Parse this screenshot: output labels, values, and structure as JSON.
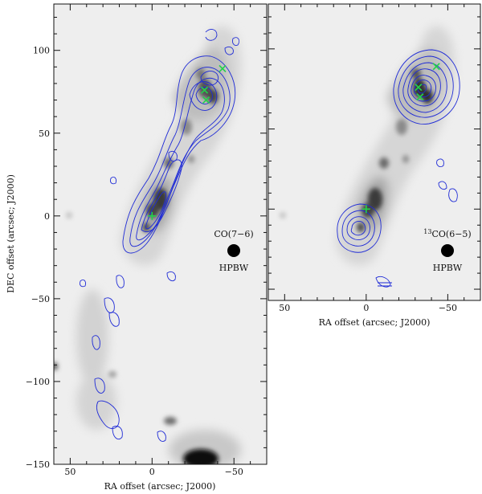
{
  "colors": {
    "background": "#eeeeee",
    "contour": "#1f2bd6",
    "marker": "#22d24a"
  },
  "chart_data": [
    {
      "type": "heatmap",
      "panel": "left",
      "xlabel": "RA offset (arcsec; J2000)",
      "ylabel": "DEC offset (arcsec; J2000)",
      "xlim": [
        60,
        -70
      ],
      "ylim": [
        -150,
        128
      ],
      "xticks": [
        50,
        0,
        -50
      ],
      "xtick_labels": [
        "50",
        "0",
        "−50"
      ],
      "yticks": [
        100,
        50,
        0,
        -50,
        -100,
        -150
      ],
      "ytick_labels": [
        "100",
        "50",
        "0",
        "−50",
        "−100",
        "−150"
      ],
      "line_label": "CO(7−6)",
      "line_label_sup": "",
      "beam_label": "HPBW",
      "beam_position": [
        -45,
        -20
      ],
      "markers": [
        {
          "type": "plus",
          "x": 0,
          "y": 0
        },
        {
          "type": "x",
          "x": -32,
          "y": 76
        },
        {
          "type": "x",
          "x": -33,
          "y": 70
        },
        {
          "type": "x",
          "x": -43,
          "y": 89
        }
      ]
    },
    {
      "type": "heatmap",
      "panel": "right",
      "xlabel": "RA offset (arcsec; J2000)",
      "xlim": [
        60,
        -70
      ],
      "ylim": [
        -57,
        128
      ],
      "xticks": [
        50,
        0,
        -50
      ],
      "xtick_labels": [
        "50",
        "0",
        "−50"
      ],
      "line_label": "CO(6−5)",
      "line_label_sup": "13",
      "beam_label": "HPBW",
      "beam_position": [
        -45,
        -20
      ],
      "markers": [
        {
          "type": "plus",
          "x": 0,
          "y": 0
        },
        {
          "type": "x",
          "x": -32,
          "y": 76
        },
        {
          "type": "x",
          "x": -33,
          "y": 70
        },
        {
          "type": "x",
          "x": -43,
          "y": 89
        }
      ]
    }
  ]
}
